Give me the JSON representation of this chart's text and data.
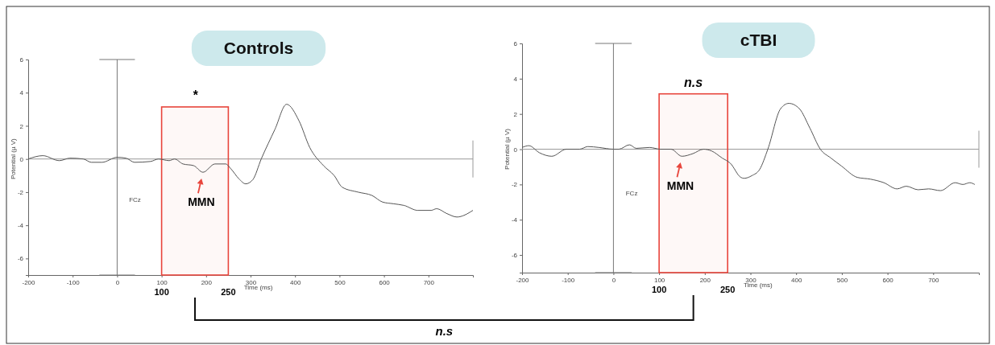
{
  "chart_data": [
    {
      "type": "line",
      "title": "Controls",
      "xlabel": "Time (ms)",
      "ylabel": "Potential (µ V)",
      "xlim": [
        -200,
        800
      ],
      "ylim": [
        -7,
        6
      ],
      "xticks": [
        -200,
        -100,
        0,
        100,
        200,
        300,
        400,
        500,
        600,
        700
      ],
      "yticks": [
        -6,
        -4,
        -2,
        0,
        2,
        4,
        6
      ],
      "grid": false,
      "series": [
        {
          "color": "#555555",
          "x": [
            -200,
            -167,
            -130,
            -106,
            -76,
            -58,
            -34,
            0,
            20,
            39,
            75,
            93,
            117,
            129,
            148,
            172,
            193,
            220,
            244,
            256,
            274,
            289,
            305,
            324,
            355,
            381,
            409,
            433,
            464,
            488,
            506,
            542,
            573,
            597,
            621,
            645,
            676,
            706,
            718,
            742,
            764,
            800
          ],
          "values": [
            0,
            0.2,
            -0.1,
            0.05,
            0,
            -0.2,
            -0.2,
            0.1,
            0.05,
            -0.2,
            -0.15,
            0,
            -0.1,
            0,
            -0.3,
            -0.4,
            -0.8,
            -0.3,
            -0.3,
            -0.6,
            -1.2,
            -1.5,
            -1.25,
            0,
            1.8,
            3.3,
            2.3,
            0.7,
            -0.4,
            -1,
            -1.7,
            -2,
            -2.2,
            -2.6,
            -2.7,
            -2.8,
            -3.1,
            -3.1,
            -3,
            -3.3,
            -3.5,
            -3.1
          ]
        }
      ],
      "ref_lines": [
        {
          "axis": "x",
          "value": 0,
          "color": "#777777"
        },
        {
          "axis": "y",
          "value": 0,
          "color": "#999999"
        }
      ],
      "bands": [
        {
          "axis": "x",
          "from": 100,
          "to": 250,
          "color": "#e8453c"
        }
      ],
      "annotations": [
        "*",
        {
          "text": "MMN",
          "x": 193,
          "y": -0.8
        },
        "FCz",
        "100",
        "250",
        "n.s"
      ]
    },
    {
      "type": "line",
      "title": "cTBI",
      "xlabel": "Time (ms)",
      "ylabel": "Potential (µ V)",
      "xlim": [
        -200,
        800
      ],
      "ylim": [
        -7,
        6
      ],
      "xticks": [
        -200,
        -100,
        0,
        100,
        200,
        300,
        400,
        500,
        600,
        700
      ],
      "yticks": [
        -6,
        -4,
        -2,
        0,
        2,
        4,
        6
      ],
      "grid": false,
      "series": [
        {
          "color": "#555555",
          "x": [
            -200,
            -185,
            -162,
            -135,
            -103,
            -74,
            -56,
            -32,
            0,
            12,
            35,
            50,
            79,
            103,
            126,
            150,
            174,
            197,
            215,
            238,
            256,
            279,
            286,
            303,
            320,
            338,
            366,
            384,
            407,
            430,
            453,
            476,
            499,
            534,
            563,
            592,
            621,
            641,
            667,
            690,
            716,
            748,
            765,
            780,
            791
          ],
          "values": [
            0.1,
            0.2,
            -0.2,
            -0.4,
            0,
            0,
            0.15,
            0.1,
            0,
            0,
            0.25,
            0.05,
            0.1,
            0,
            0,
            -0.4,
            -0.25,
            0,
            -0.1,
            -0.5,
            -0.8,
            -1.6,
            -1.65,
            -1.5,
            -1.15,
            0,
            2.3,
            2.6,
            2.3,
            1.2,
            0,
            -0.5,
            -0.95,
            -1.6,
            -1.7,
            -1.9,
            -2.25,
            -2.1,
            -2.3,
            -2.25,
            -2.35,
            -1.9,
            -2,
            -1.9,
            -2
          ]
        }
      ],
      "ref_lines": [
        {
          "axis": "x",
          "value": 0,
          "color": "#777777"
        },
        {
          "axis": "y",
          "value": 0,
          "color": "#999999"
        }
      ],
      "bands": [
        {
          "axis": "x",
          "from": 100,
          "to": 250,
          "color": "#e8453c"
        }
      ],
      "annotations": [
        "n.s",
        {
          "text": "MMN",
          "x": 150,
          "y": -0.4
        },
        "FCz",
        "100",
        "250"
      ]
    }
  ]
}
